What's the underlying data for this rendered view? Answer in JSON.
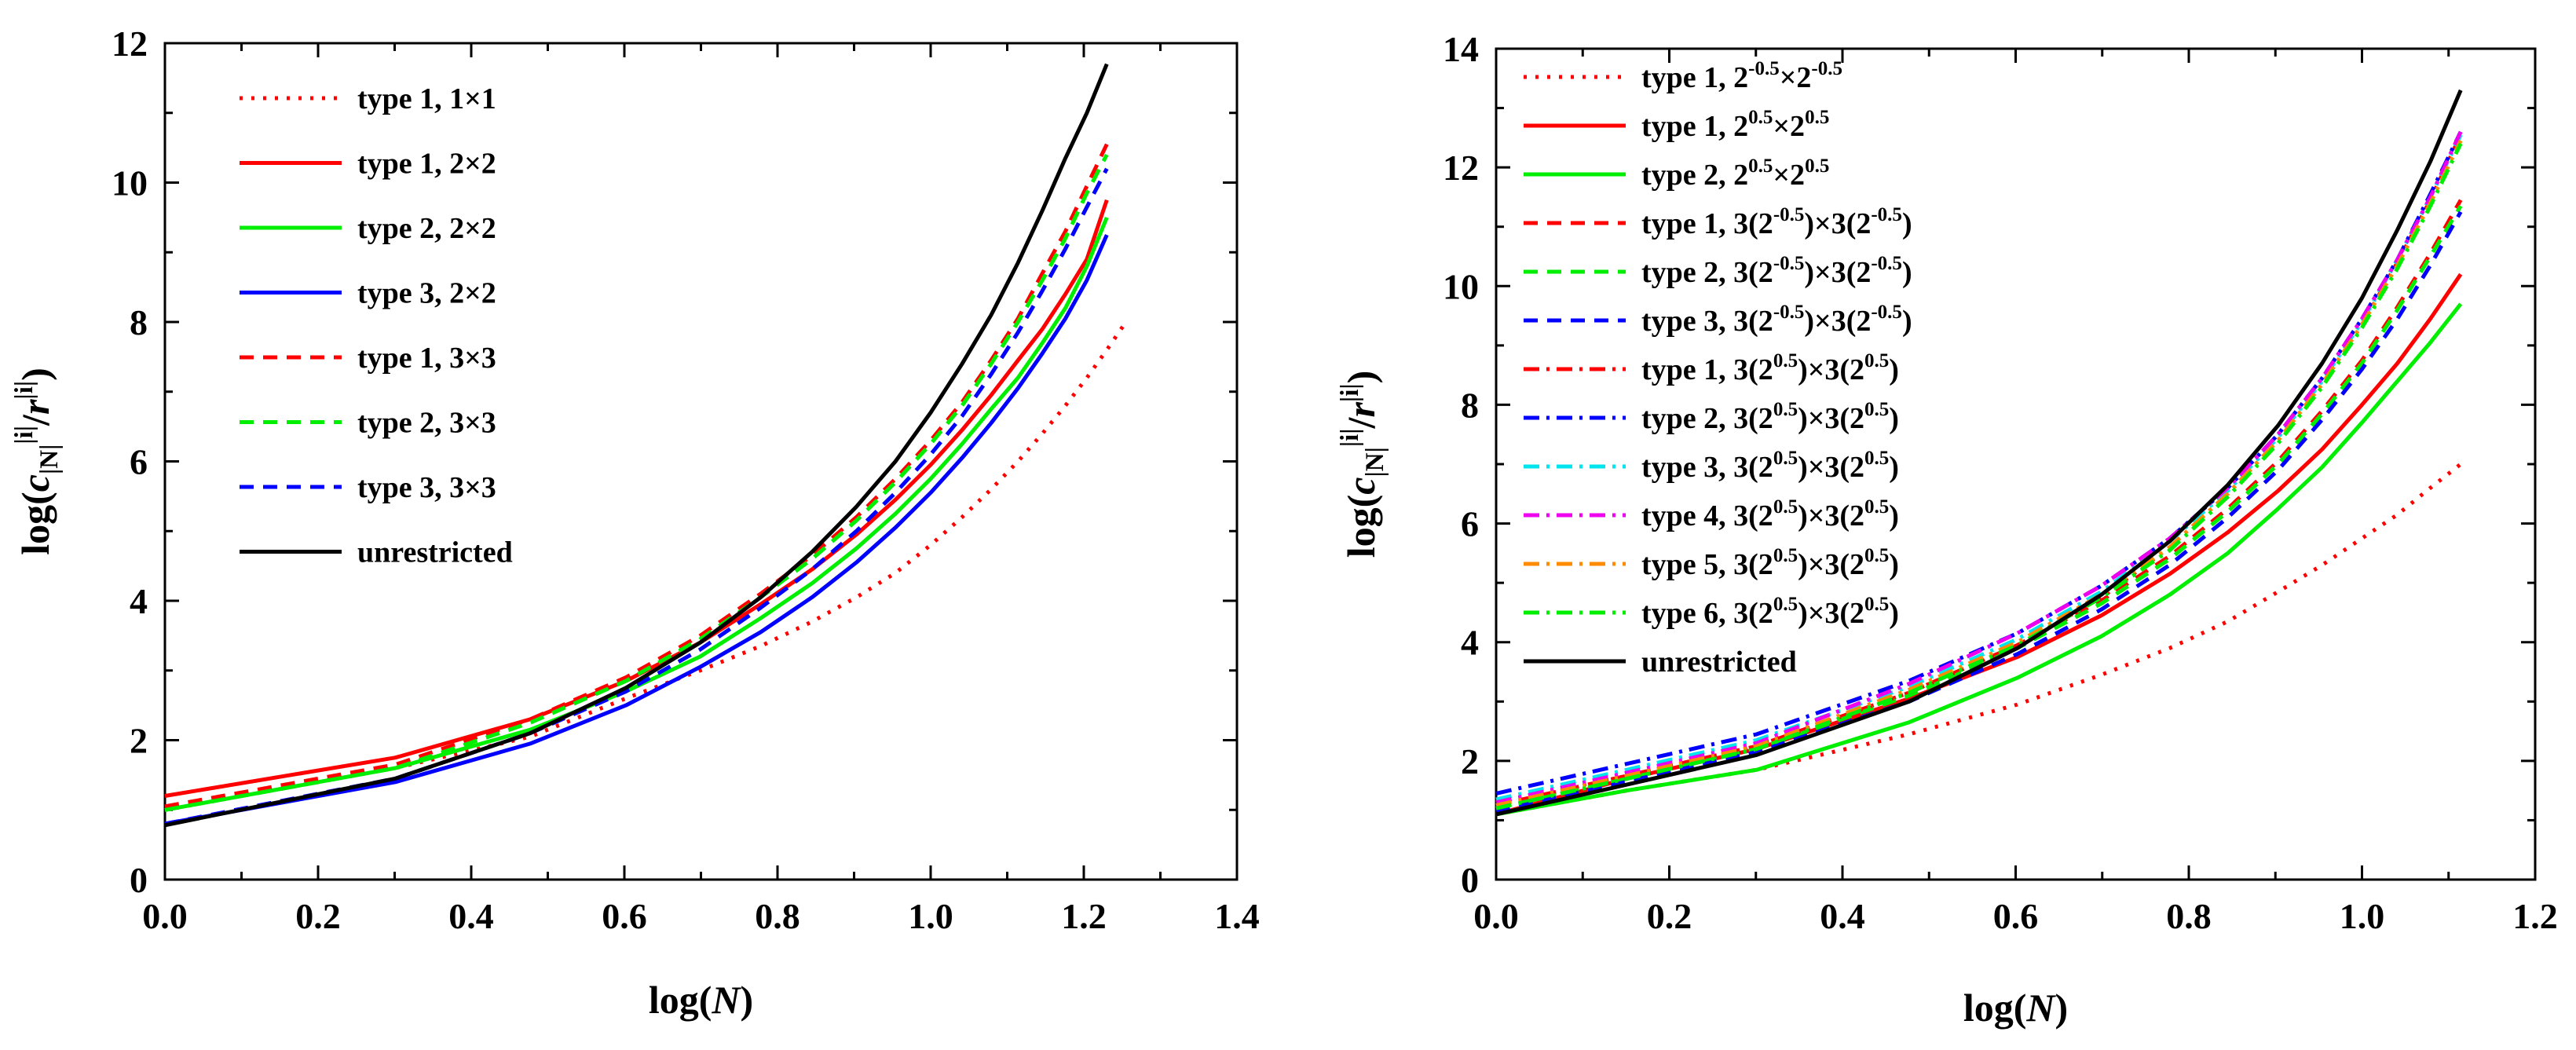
{
  "chart_data": [
    {
      "type": "line",
      "xlabel": "log(N)",
      "ylabel": "log(c^i_N / r^i)",
      "xlim": [
        0.0,
        1.4
      ],
      "ylim": [
        0,
        12
      ],
      "xticks": [
        "0.0",
        "0.2",
        "0.4",
        "0.6",
        "0.8",
        "1.0",
        "1.2",
        "1.4"
      ],
      "yticks": [
        "0",
        "2",
        "4",
        "6",
        "8",
        "10",
        "12"
      ],
      "legend_position": "top-left",
      "grid": false,
      "series": [
        {
          "name": "type 1, 1×1",
          "color": "#ff0000",
          "dash": "dot",
          "x": [
            0.0,
            0.301,
            0.477,
            0.602,
            0.699,
            0.778,
            0.845,
            0.903,
            0.954,
            1.0,
            1.041,
            1.079,
            1.114,
            1.146,
            1.176,
            1.204,
            1.23,
            1.255
          ],
          "y": [
            1.0,
            1.6,
            2.05,
            2.6,
            3.0,
            3.35,
            3.7,
            4.05,
            4.4,
            4.8,
            5.2,
            5.6,
            6.0,
            6.4,
            6.8,
            7.2,
            7.6,
            8.0
          ]
        },
        {
          "name": "type 1, 2×2",
          "color": "#ff0000",
          "dash": "solid",
          "x": [
            0.0,
            0.301,
            0.477,
            0.602,
            0.699,
            0.778,
            0.845,
            0.903,
            0.954,
            1.0,
            1.041,
            1.079,
            1.114,
            1.146,
            1.176,
            1.204,
            1.23
          ],
          "y": [
            1.2,
            1.75,
            2.3,
            2.85,
            3.4,
            3.95,
            4.45,
            4.95,
            5.45,
            5.95,
            6.45,
            6.95,
            7.45,
            7.9,
            8.4,
            8.9,
            9.75
          ]
        },
        {
          "name": "type 2, 2×2",
          "color": "#00ee00",
          "dash": "solid",
          "x": [
            0.0,
            0.301,
            0.477,
            0.602,
            0.699,
            0.778,
            0.845,
            0.903,
            0.954,
            1.0,
            1.041,
            1.079,
            1.114,
            1.146,
            1.176,
            1.204,
            1.23
          ],
          "y": [
            1.0,
            1.6,
            2.15,
            2.7,
            3.2,
            3.75,
            4.25,
            4.75,
            5.25,
            5.75,
            6.25,
            6.75,
            7.2,
            7.7,
            8.2,
            8.8,
            9.5
          ]
        },
        {
          "name": "type 3, 2×2",
          "color": "#0000ff",
          "dash": "solid",
          "x": [
            0.0,
            0.301,
            0.477,
            0.602,
            0.699,
            0.778,
            0.845,
            0.903,
            0.954,
            1.0,
            1.041,
            1.079,
            1.114,
            1.146,
            1.176,
            1.204,
            1.23
          ],
          "y": [
            0.8,
            1.4,
            1.95,
            2.5,
            3.05,
            3.55,
            4.05,
            4.55,
            5.05,
            5.55,
            6.05,
            6.55,
            7.05,
            7.55,
            8.05,
            8.6,
            9.25
          ]
        },
        {
          "name": "type 1, 3×3",
          "color": "#ff0000",
          "dash": "dash",
          "x": [
            0.0,
            0.301,
            0.477,
            0.602,
            0.699,
            0.778,
            0.845,
            0.903,
            0.954,
            1.0,
            1.041,
            1.079,
            1.114,
            1.146,
            1.176,
            1.204,
            1.23
          ],
          "y": [
            1.05,
            1.65,
            2.3,
            2.9,
            3.5,
            4.1,
            4.65,
            5.2,
            5.75,
            6.3,
            6.85,
            7.45,
            8.05,
            8.7,
            9.3,
            9.95,
            10.55
          ]
        },
        {
          "name": "type 2, 3×3",
          "color": "#00ee00",
          "dash": "dash",
          "x": [
            0.0,
            0.301,
            0.477,
            0.602,
            0.699,
            0.778,
            0.845,
            0.903,
            0.954,
            1.0,
            1.041,
            1.079,
            1.114,
            1.146,
            1.176,
            1.204,
            1.23
          ],
          "y": [
            1.0,
            1.6,
            2.25,
            2.85,
            3.45,
            4.05,
            4.6,
            5.15,
            5.7,
            6.25,
            6.8,
            7.4,
            8.0,
            8.6,
            9.2,
            9.85,
            10.4
          ]
        },
        {
          "name": "type 3, 3×3",
          "color": "#0000ff",
          "dash": "dash",
          "x": [
            0.0,
            0.301,
            0.477,
            0.602,
            0.699,
            0.778,
            0.845,
            0.903,
            0.954,
            1.0,
            1.041,
            1.079,
            1.114,
            1.146,
            1.176,
            1.204,
            1.23
          ],
          "y": [
            0.8,
            1.45,
            2.1,
            2.7,
            3.3,
            3.9,
            4.45,
            5.0,
            5.55,
            6.1,
            6.65,
            7.25,
            7.85,
            8.45,
            9.05,
            9.65,
            10.2
          ]
        },
        {
          "name": "unrestricted",
          "color": "#000000",
          "dash": "solid",
          "x": [
            0.0,
            0.301,
            0.477,
            0.602,
            0.699,
            0.778,
            0.845,
            0.903,
            0.954,
            1.0,
            1.041,
            1.079,
            1.114,
            1.146,
            1.176,
            1.204,
            1.23
          ],
          "y": [
            0.78,
            1.45,
            2.1,
            2.75,
            3.4,
            4.05,
            4.7,
            5.35,
            6.0,
            6.7,
            7.4,
            8.1,
            8.85,
            9.6,
            10.35,
            11.0,
            11.7
          ]
        }
      ]
    },
    {
      "type": "line",
      "xlabel": "log(N)",
      "ylabel": "log(c^i_N / r^i)",
      "xlim": [
        0.0,
        1.2
      ],
      "ylim": [
        0,
        14
      ],
      "xticks": [
        "0.0",
        "0.2",
        "0.4",
        "0.6",
        "0.8",
        "1.0",
        "1.2"
      ],
      "yticks": [
        "0",
        "2",
        "4",
        "6",
        "8",
        "10",
        "12",
        "14"
      ],
      "legend_position": "top-left",
      "grid": false,
      "series": [
        {
          "name": "type 1, 2^-0.5×2^-0.5",
          "color": "#ff0000",
          "dash": "dot",
          "x": [
            0.0,
            0.151,
            0.301,
            0.477,
            0.602,
            0.699,
            0.778,
            0.845,
            0.903,
            0.954,
            1.0,
            1.041,
            1.079,
            1.114
          ],
          "y": [
            1.1,
            1.5,
            1.85,
            2.45,
            2.95,
            3.45,
            3.9,
            4.35,
            4.85,
            5.3,
            5.75,
            6.15,
            6.6,
            7.0
          ]
        },
        {
          "name": "type 1, 2^0.5×2^0.5",
          "color": "#ff0000",
          "dash": "solid",
          "x": [
            0.0,
            0.151,
            0.301,
            0.477,
            0.602,
            0.699,
            0.778,
            0.845,
            0.903,
            0.954,
            1.0,
            1.041,
            1.079,
            1.114
          ],
          "y": [
            1.1,
            1.7,
            2.2,
            3.05,
            3.75,
            4.45,
            5.15,
            5.85,
            6.55,
            7.25,
            8.0,
            8.7,
            9.45,
            10.2
          ]
        },
        {
          "name": "type 2, 2^0.5×2^0.5",
          "color": "#00ee00",
          "dash": "solid",
          "x": [
            0.0,
            0.151,
            0.301,
            0.477,
            0.602,
            0.699,
            0.778,
            0.845,
            0.903,
            0.954,
            1.0,
            1.041,
            1.079,
            1.114
          ],
          "y": [
            1.1,
            1.5,
            1.85,
            2.65,
            3.4,
            4.1,
            4.8,
            5.5,
            6.25,
            6.95,
            7.7,
            8.4,
            9.05,
            9.7
          ]
        },
        {
          "name": "type 1, 3(2^-0.5)×3(2^-0.5)",
          "color": "#ff0000",
          "dash": "dash",
          "x": [
            0.0,
            0.151,
            0.301,
            0.477,
            0.602,
            0.699,
            0.778,
            0.845,
            0.903,
            0.954,
            1.0,
            1.041,
            1.079,
            1.114
          ],
          "y": [
            1.25,
            1.75,
            2.25,
            3.15,
            3.95,
            4.7,
            5.45,
            6.25,
            7.05,
            7.9,
            8.75,
            9.65,
            10.55,
            11.45
          ]
        },
        {
          "name": "type 2, 3(2^-0.5)×3(2^-0.5)",
          "color": "#00ee00",
          "dash": "dash",
          "x": [
            0.0,
            0.151,
            0.301,
            0.477,
            0.602,
            0.699,
            0.778,
            0.845,
            0.903,
            0.954,
            1.0,
            1.041,
            1.079,
            1.114
          ],
          "y": [
            1.2,
            1.7,
            2.2,
            3.1,
            3.9,
            4.65,
            5.4,
            6.2,
            7.0,
            7.85,
            8.7,
            9.6,
            10.5,
            11.35
          ]
        },
        {
          "name": "type 3, 3(2^-0.5)×3(2^-0.5)",
          "color": "#0000ff",
          "dash": "dash",
          "x": [
            0.0,
            0.151,
            0.301,
            0.477,
            0.602,
            0.699,
            0.778,
            0.845,
            0.903,
            0.954,
            1.0,
            1.041,
            1.079,
            1.114
          ],
          "y": [
            1.15,
            1.65,
            2.15,
            3.0,
            3.8,
            4.55,
            5.3,
            6.1,
            6.9,
            7.75,
            8.6,
            9.45,
            10.35,
            11.25
          ]
        },
        {
          "name": "type 1, 3(2^0.5)×3(2^0.5)",
          "color": "#ff0000",
          "dash": "dashdot",
          "x": [
            0.0,
            0.151,
            0.301,
            0.477,
            0.602,
            0.699,
            0.778,
            0.845,
            0.903,
            0.954,
            1.0,
            1.041,
            1.079,
            1.114
          ],
          "y": [
            1.3,
            1.75,
            2.25,
            3.15,
            3.95,
            4.75,
            5.6,
            6.5,
            7.4,
            8.35,
            9.35,
            10.4,
            11.45,
            12.55
          ]
        },
        {
          "name": "type 2, 3(2^0.5)×3(2^0.5)",
          "color": "#0000ff",
          "dash": "dashdot",
          "x": [
            0.0,
            0.151,
            0.301,
            0.477,
            0.602,
            0.699,
            0.778,
            0.845,
            0.903,
            0.954,
            1.0,
            1.041,
            1.079,
            1.114
          ],
          "y": [
            1.45,
            1.95,
            2.45,
            3.35,
            4.15,
            4.95,
            5.75,
            6.6,
            7.5,
            8.45,
            9.45,
            10.45,
            11.55,
            12.6
          ]
        },
        {
          "name": "type 3, 3(2^0.5)×3(2^0.5)",
          "color": "#00e5ee",
          "dash": "dashdot",
          "x": [
            0.0,
            0.151,
            0.301,
            0.477,
            0.602,
            0.699,
            0.778,
            0.845,
            0.903,
            0.954,
            1.0,
            1.041,
            1.079,
            1.114
          ],
          "y": [
            1.35,
            1.85,
            2.35,
            3.25,
            4.05,
            4.85,
            5.7,
            6.55,
            7.45,
            8.4,
            9.4,
            10.45,
            11.5,
            12.55
          ]
        },
        {
          "name": "type 4, 3(2^0.5)×3(2^0.5)",
          "color": "#ee00ee",
          "dash": "dashdot",
          "x": [
            0.0,
            0.151,
            0.301,
            0.477,
            0.602,
            0.699,
            0.778,
            0.845,
            0.903,
            0.954,
            1.0,
            1.041,
            1.079,
            1.114
          ],
          "y": [
            1.3,
            1.8,
            2.3,
            3.3,
            4.15,
            4.95,
            5.75,
            6.6,
            7.5,
            8.45,
            9.45,
            10.45,
            11.5,
            12.6
          ]
        },
        {
          "name": "type 5, 3(2^0.5)×3(2^0.5)",
          "color": "#ff8c00",
          "dash": "dashdot",
          "x": [
            0.0,
            0.151,
            0.301,
            0.477,
            0.602,
            0.699,
            0.778,
            0.845,
            0.903,
            0.954,
            1.0,
            1.041,
            1.079,
            1.114
          ],
          "y": [
            1.25,
            1.75,
            2.25,
            3.2,
            4.0,
            4.8,
            5.6,
            6.5,
            7.4,
            8.35,
            9.35,
            10.35,
            11.4,
            12.45
          ]
        },
        {
          "name": "type 6, 3(2^0.5)×3(2^0.5)",
          "color": "#00ee00",
          "dash": "dashdot",
          "x": [
            0.0,
            0.151,
            0.301,
            0.477,
            0.602,
            0.699,
            0.778,
            0.845,
            0.903,
            0.954,
            1.0,
            1.041,
            1.079,
            1.114
          ],
          "y": [
            1.2,
            1.7,
            2.2,
            3.15,
            3.95,
            4.75,
            5.55,
            6.45,
            7.35,
            8.3,
            9.3,
            10.3,
            11.35,
            12.4
          ]
        },
        {
          "name": "unrestricted",
          "color": "#000000",
          "dash": "solid",
          "x": [
            0.0,
            0.151,
            0.301,
            0.477,
            0.602,
            0.699,
            0.778,
            0.845,
            0.903,
            0.954,
            1.0,
            1.041,
            1.079,
            1.114
          ],
          "y": [
            1.1,
            1.6,
            2.1,
            3.0,
            3.9,
            4.8,
            5.7,
            6.65,
            7.65,
            8.7,
            9.8,
            10.95,
            12.1,
            13.3
          ]
        }
      ]
    }
  ]
}
